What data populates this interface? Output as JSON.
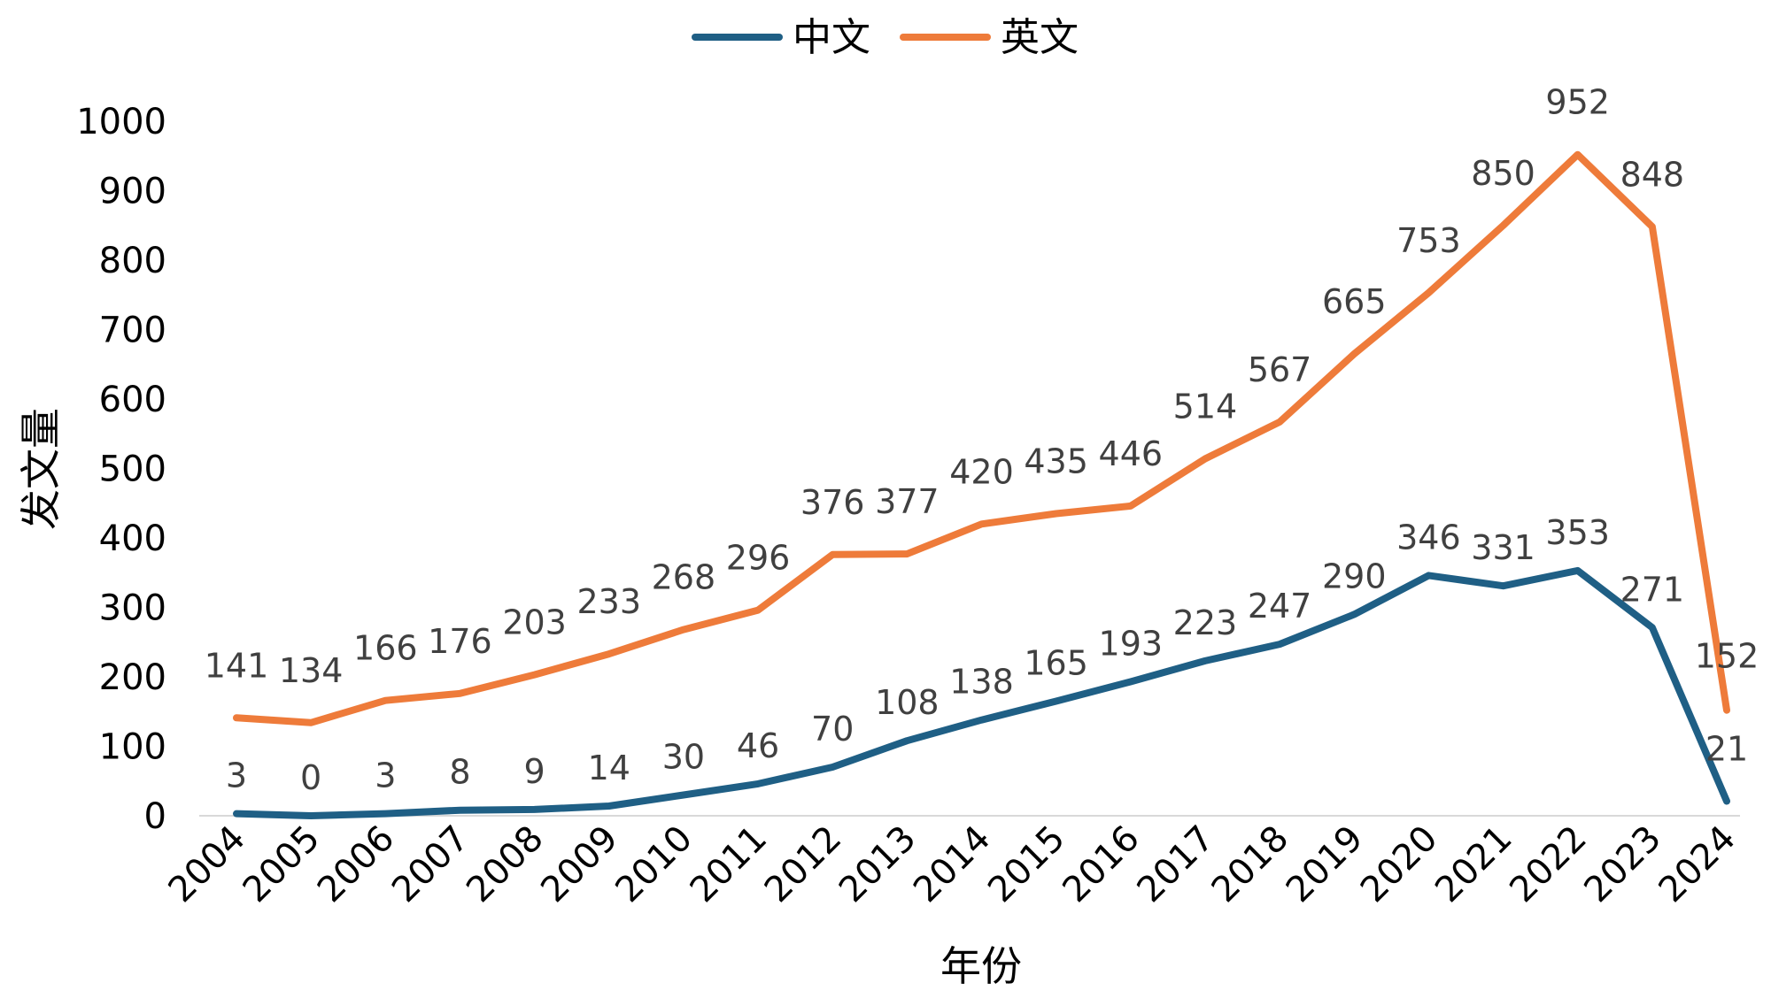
{
  "chart_data": {
    "type": "line",
    "xlabel": "年份",
    "ylabel": "发文量",
    "ylim": [
      0,
      1000
    ],
    "yticks": [
      0,
      100,
      200,
      300,
      400,
      500,
      600,
      700,
      800,
      900,
      1000
    ],
    "grid": false,
    "legend_position": "top-center",
    "categories": [
      "2004",
      "2005",
      "2006",
      "2007",
      "2008",
      "2009",
      "2010",
      "2011",
      "2012",
      "2013",
      "2014",
      "2015",
      "2016",
      "2017",
      "2018",
      "2019",
      "2020",
      "2021",
      "2022",
      "2023",
      "2024"
    ],
    "series": [
      {
        "name": "中文",
        "color": "#1f5f85",
        "values": [
          3,
          0,
          3,
          8,
          9,
          14,
          30,
          46,
          70,
          108,
          138,
          165,
          193,
          223,
          247,
          290,
          346,
          331,
          353,
          271,
          21
        ]
      },
      {
        "name": "英文",
        "color": "#ee7b3a",
        "values": [
          141,
          134,
          166,
          176,
          203,
          233,
          268,
          296,
          376,
          377,
          420,
          435,
          446,
          514,
          567,
          665,
          753,
          850,
          952,
          848,
          152
        ]
      }
    ]
  }
}
